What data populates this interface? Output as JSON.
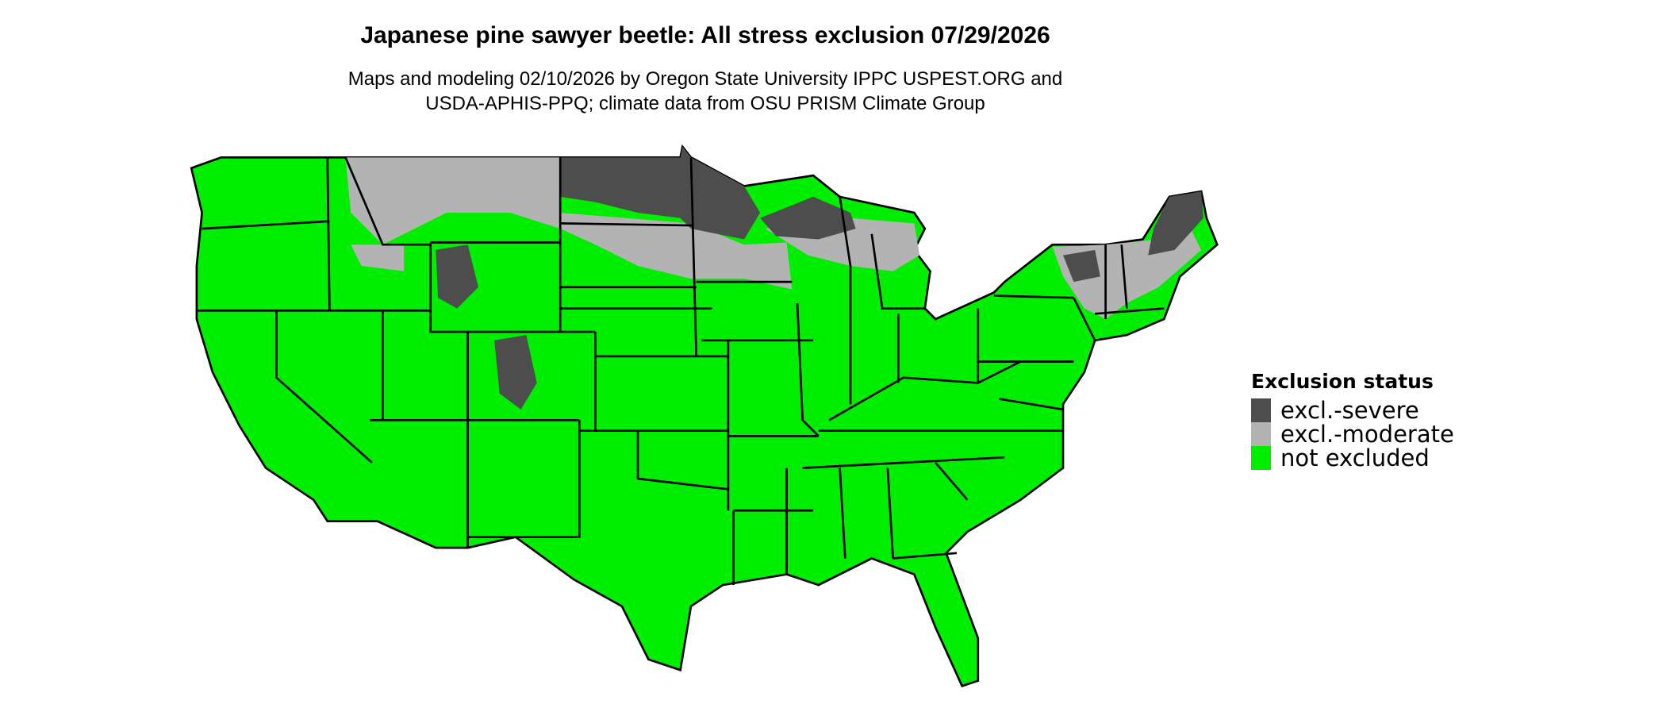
{
  "title": "Japanese pine sawyer beetle: All stress exclusion 07/29/2026",
  "subtitle_line1": "Maps and modeling 02/10/2026 by Oregon State University IPPC USPEST.ORG and",
  "subtitle_line2": "USDA-APHIS-PPQ; climate data from OSU PRISM Climate Group",
  "chart_data": {
    "type": "map",
    "region": "conterminous United States",
    "legend": {
      "title": "Exclusion status",
      "placement": "right",
      "items": [
        {
          "label": "excl.-severe",
          "color": "#4d4d4d"
        },
        {
          "label": "excl.-moderate",
          "color": "#b3b3b3"
        },
        {
          "label": "not excluded",
          "color": "#00ee00"
        }
      ]
    }
  }
}
